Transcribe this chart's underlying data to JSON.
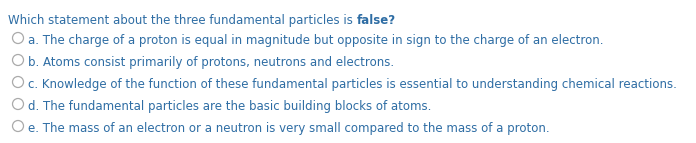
{
  "background_color": "#ffffff",
  "text_color": "#2e6da4",
  "circle_color": "#aaaaaa",
  "question_normal": "Which statement about the three fundamental particles is ",
  "question_bold": "false?",
  "options": [
    "a. The charge of a proton is equal in magnitude but opposite in sign to the charge of an electron.",
    "b. Atoms consist primarily of protons, neutrons and electrons.",
    "c. Knowledge of the function of these fundamental particles is essential to understanding chemical reactions.",
    "d. The fundamental particles are the basic building blocks of atoms.",
    "e. The mass of an electron or a neutron is very small compared to the mass of a proton."
  ],
  "font_size": 8.5,
  "question_font_size": 8.5,
  "figwidth": 6.96,
  "figheight": 1.43,
  "dpi": 100
}
